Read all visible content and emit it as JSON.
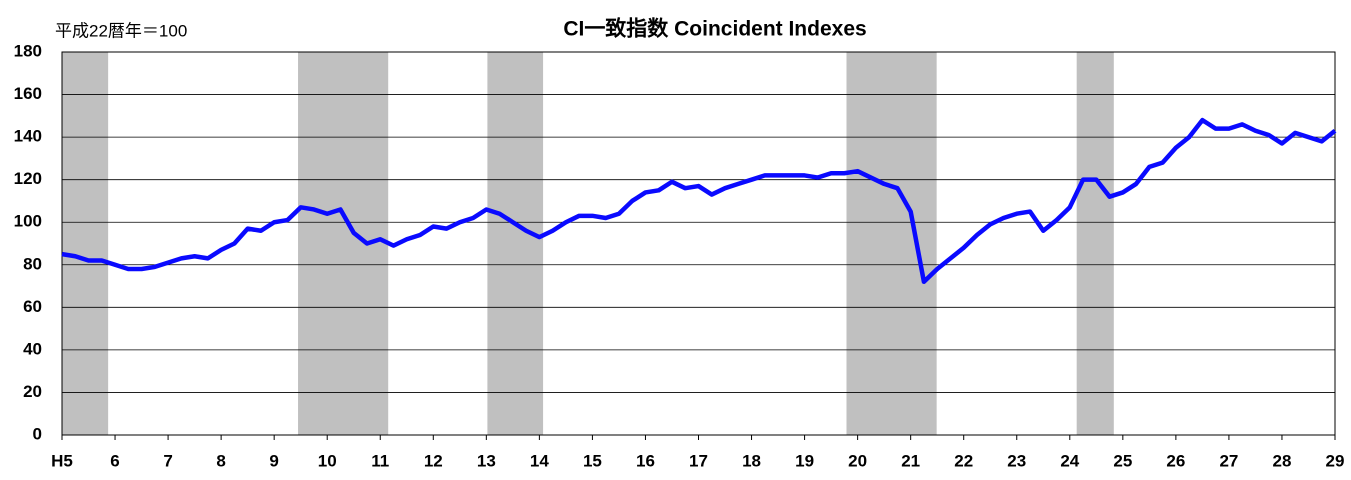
{
  "chart_data": {
    "type": "line",
    "title": "CI一致指数 Coincident Indexes",
    "unit_label": "平成22暦年＝100",
    "color": "#0a0aff",
    "shade_color": "#c0c0c0",
    "grid": true,
    "ylim": [
      0,
      180
    ],
    "yticks": [
      0,
      20,
      40,
      60,
      80,
      100,
      120,
      140,
      160,
      180
    ],
    "xlim": [
      5,
      29
    ],
    "xticks": [
      {
        "value": 5,
        "label": "H5"
      },
      6,
      7,
      8,
      9,
      10,
      11,
      12,
      13,
      14,
      15,
      16,
      17,
      18,
      19,
      20,
      21,
      22,
      23,
      24,
      25,
      26,
      27,
      28,
      29
    ],
    "shaded_ranges": [
      [
        5,
        5.87
      ],
      [
        9.45,
        11.15
      ],
      [
        13.02,
        14.07
      ],
      [
        19.79,
        21.49
      ],
      [
        24.13,
        24.83
      ]
    ],
    "x": [
      5,
      5.25,
      5.5,
      5.75,
      6,
      6.25,
      6.5,
      6.75,
      7,
      7.25,
      7.5,
      7.75,
      8,
      8.25,
      8.5,
      8.75,
      9,
      9.25,
      9.5,
      9.75,
      10,
      10.25,
      10.5,
      10.75,
      11,
      11.25,
      11.5,
      11.75,
      12,
      12.25,
      12.5,
      12.75,
      13,
      13.25,
      13.5,
      13.75,
      14,
      14.25,
      14.5,
      14.75,
      15,
      15.25,
      15.5,
      15.75,
      16,
      16.25,
      16.5,
      16.75,
      17,
      17.25,
      17.5,
      17.75,
      18,
      18.25,
      18.5,
      18.75,
      19,
      19.25,
      19.5,
      19.75,
      20,
      20.25,
      20.5,
      20.75,
      21,
      21.25,
      21.5,
      21.75,
      22,
      22.25,
      22.5,
      22.75,
      23,
      23.25,
      23.5,
      23.75,
      24,
      24.25,
      24.5,
      24.75,
      25,
      25.25,
      25.5,
      25.75,
      26,
      26.25,
      26.5,
      26.75,
      27,
      27.25,
      27.5,
      27.75,
      28,
      28.25,
      28.5,
      28.75,
      29
    ],
    "values": [
      85,
      84,
      82,
      82,
      80,
      78,
      78,
      79,
      81,
      83,
      84,
      83,
      87,
      90,
      97,
      96,
      100,
      101,
      107,
      106,
      104,
      106,
      95,
      90,
      92,
      89,
      92,
      94,
      98,
      97,
      100,
      102,
      106,
      104,
      100,
      96,
      93,
      96,
      100,
      103,
      103,
      102,
      104,
      110,
      114,
      115,
      119,
      116,
      117,
      113,
      116,
      118,
      120,
      122,
      122,
      122,
      122,
      121,
      123,
      123,
      124,
      121,
      118,
      116,
      105,
      72,
      78,
      83,
      88,
      94,
      99,
      102,
      104,
      105,
      96,
      101,
      107,
      120,
      120,
      112,
      114,
      118,
      126,
      128,
      135,
      140,
      148,
      144,
      144,
      146,
      143,
      141,
      137,
      142,
      140,
      138,
      143
    ]
  }
}
